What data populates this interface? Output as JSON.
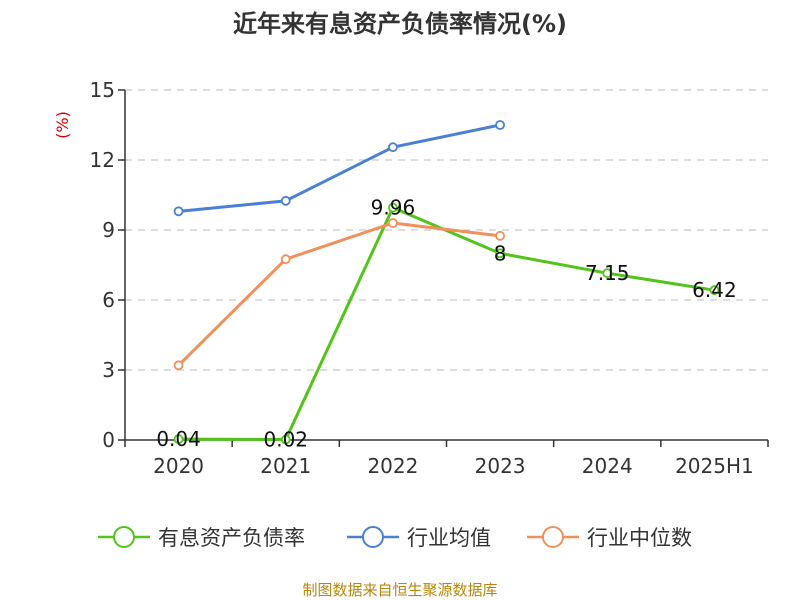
{
  "chart_data": {
    "type": "line",
    "title": "近年来有息资产负债率情况(%)",
    "ylabel": "(%)",
    "xlabel": "",
    "categories": [
      "2020",
      "2021",
      "2022",
      "2023",
      "2024",
      "2025H1"
    ],
    "ylim": [
      0,
      15
    ],
    "yticks": [
      0,
      3,
      6,
      9,
      12,
      15
    ],
    "grid": true,
    "legend_position": "bottom",
    "series": [
      {
        "name": "有息资产负债率",
        "color": "#52c41a",
        "values": [
          0.04,
          0.02,
          9.96,
          8,
          7.15,
          6.42
        ],
        "labels": [
          "0.04",
          "0.02",
          "9.96",
          "8",
          "7.15",
          "6.42"
        ],
        "show_labels": true
      },
      {
        "name": "行业均值",
        "color": "#4a7fd4",
        "values": [
          9.8,
          10.25,
          12.55,
          13.5,
          null,
          null
        ],
        "show_labels": false
      },
      {
        "name": "行业中位数",
        "color": "#f0905a",
        "values": [
          3.2,
          7.75,
          9.3,
          8.75,
          null,
          null
        ],
        "show_labels": false
      }
    ]
  },
  "source": "制图数据来自恒生聚源数据库"
}
